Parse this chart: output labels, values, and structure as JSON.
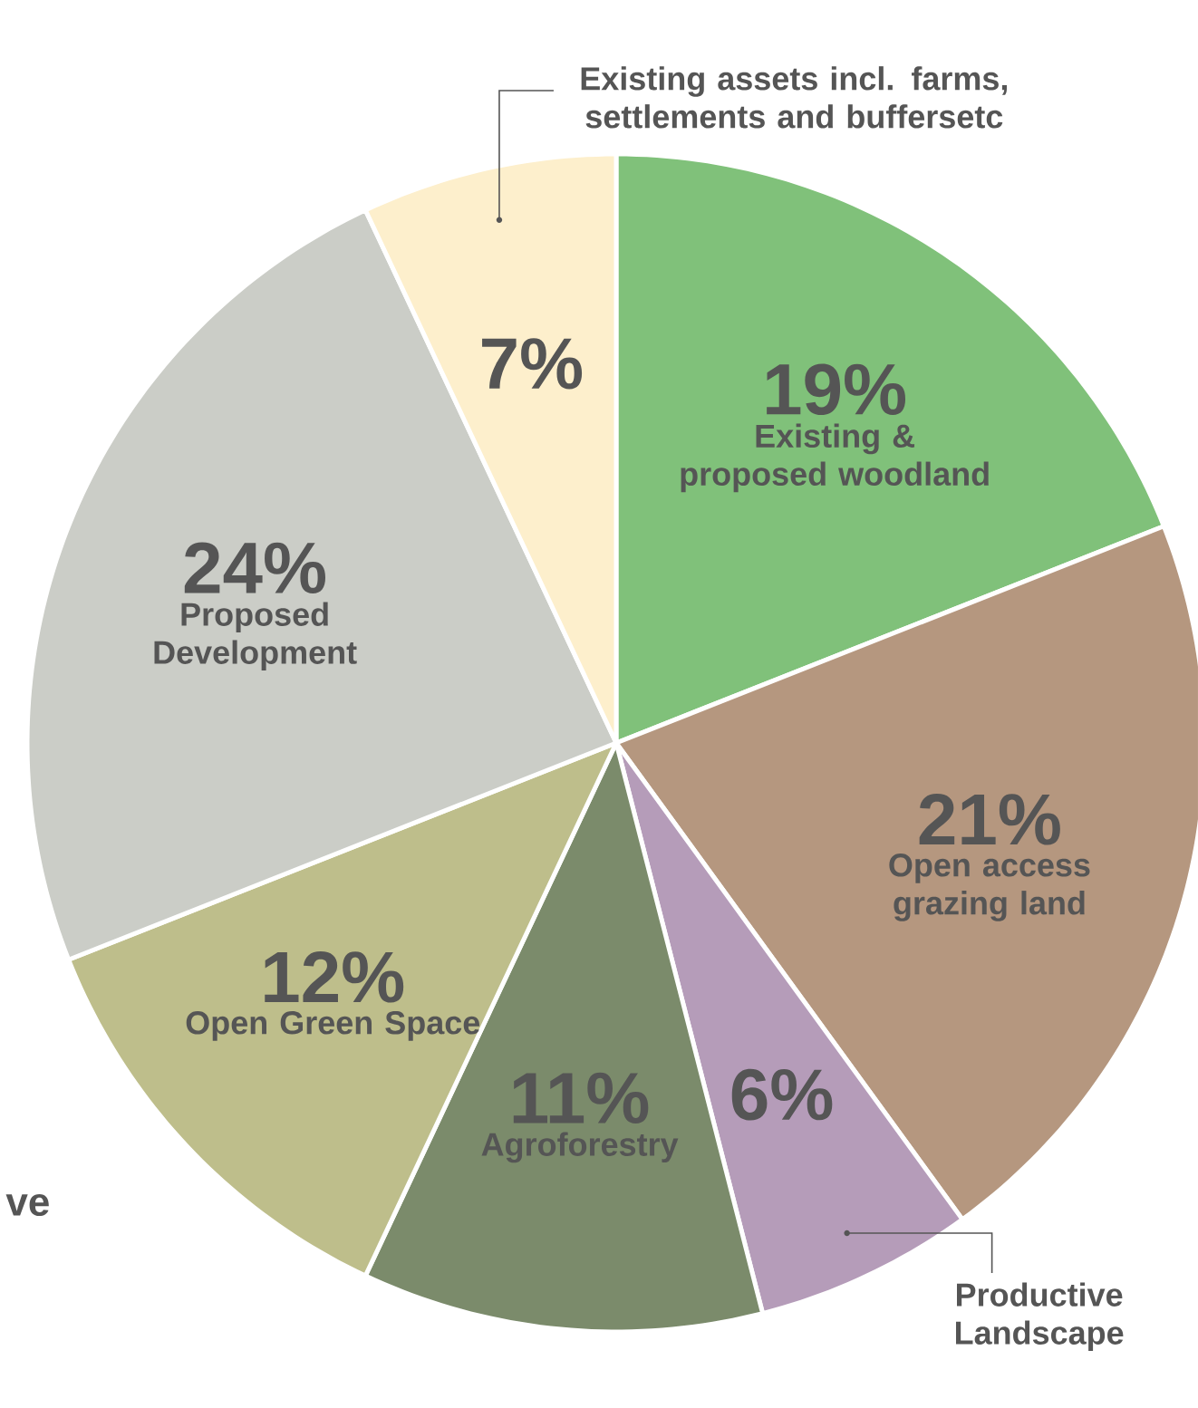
{
  "chart_data": {
    "type": "pie",
    "categories": [
      "Existing & proposed woodland",
      "Open access grazing land",
      "Productive Landscape",
      "Agroforestry",
      "Open Green Space",
      "Proposed Development",
      "Existing assets incl. farms, settlements and buffersetc"
    ],
    "values": [
      19,
      21,
      6,
      11,
      12,
      24,
      7
    ],
    "value_labels": [
      "19%",
      "21%",
      "6%",
      "11%",
      "12%",
      "24%",
      "7%"
    ],
    "colors": [
      "#80c17a",
      "#b5977f",
      "#b59cb9",
      "#7b8b6b",
      "#bebe8b",
      "#cbcdc7",
      "#fdefcc"
    ],
    "annotations": [
      "ve"
    ]
  }
}
